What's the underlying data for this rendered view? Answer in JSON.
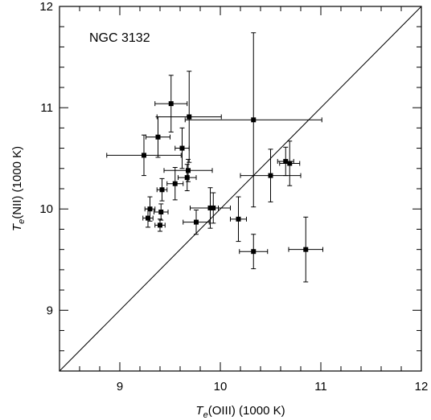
{
  "chart_data": {
    "type": "scatter",
    "annotation": "NGC 3132",
    "xlabel": {
      "main": "T",
      "sub": "e",
      "rest": "(OIII) (1000 K)"
    },
    "ylabel": {
      "main": "T",
      "sub": "e",
      "rest": "(NII) (1000 K)"
    },
    "xlim": [
      8.4,
      12
    ],
    "ylim": [
      8.4,
      12
    ],
    "xticks": [
      9,
      10,
      11,
      12
    ],
    "yticks": [
      9,
      10,
      11,
      12
    ],
    "tick_labels": {
      "x": [
        "9",
        "10",
        "11",
        "12"
      ],
      "y": [
        "9",
        "10",
        "11",
        "12"
      ]
    },
    "reference_line": {
      "label": "",
      "from": [
        8.4,
        8.4
      ],
      "to": [
        12,
        12
      ]
    },
    "marker": "filled-square",
    "color": "#000000",
    "points": [
      {
        "x": 9.51,
        "y": 11.04,
        "xerr": 0.16,
        "yerr": 0.28
      },
      {
        "x": 9.69,
        "y": 10.91,
        "xerr": 0.32,
        "yerr": 0.45
      },
      {
        "x": 10.33,
        "y": 10.88,
        "xerr": 0.68,
        "yerr": 0.86
      },
      {
        "x": 9.24,
        "y": 10.53,
        "xerr": 0.37,
        "yerr": 0.2
      },
      {
        "x": 9.38,
        "y": 10.71,
        "xerr": 0.12,
        "yerr": 0.2
      },
      {
        "x": 9.62,
        "y": 10.6,
        "xerr": 0.07,
        "yerr": 0.2
      },
      {
        "x": 9.68,
        "y": 10.38,
        "xerr": 0.24,
        "yerr": 0.11
      },
      {
        "x": 9.67,
        "y": 10.31,
        "xerr": 0.09,
        "yerr": 0.13
      },
      {
        "x": 9.55,
        "y": 10.25,
        "xerr": 0.08,
        "yerr": 0.16
      },
      {
        "x": 9.42,
        "y": 10.19,
        "xerr": 0.05,
        "yerr": 0.11
      },
      {
        "x": 10.69,
        "y": 10.45,
        "xerr": 0.1,
        "yerr": 0.22
      },
      {
        "x": 10.65,
        "y": 10.47,
        "xerr": 0.08,
        "yerr": 0.14
      },
      {
        "x": 10.5,
        "y": 10.33,
        "xerr": 0.3,
        "yerr": 0.26
      },
      {
        "x": 9.3,
        "y": 10.0,
        "xerr": 0.05,
        "yerr": 0.12
      },
      {
        "x": 9.28,
        "y": 9.91,
        "xerr": 0.05,
        "yerr": 0.09
      },
      {
        "x": 9.41,
        "y": 9.97,
        "xerr": 0.07,
        "yerr": 0.08
      },
      {
        "x": 9.4,
        "y": 9.84,
        "xerr": 0.05,
        "yerr": 0.06
      },
      {
        "x": 9.9,
        "y": 10.01,
        "xerr": 0.2,
        "yerr": 0.2
      },
      {
        "x": 9.93,
        "y": 10.01,
        "xerr": 0.05,
        "yerr": 0.15
      },
      {
        "x": 9.76,
        "y": 9.87,
        "xerr": 0.13,
        "yerr": 0.12
      },
      {
        "x": 10.18,
        "y": 9.9,
        "xerr": 0.08,
        "yerr": 0.22
      },
      {
        "x": 10.33,
        "y": 9.58,
        "xerr": 0.14,
        "yerr": 0.17
      },
      {
        "x": 10.85,
        "y": 9.6,
        "xerr": 0.17,
        "yerr": 0.32
      }
    ]
  }
}
